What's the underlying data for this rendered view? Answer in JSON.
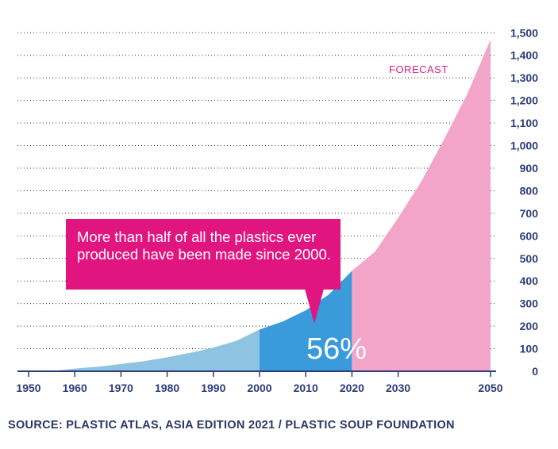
{
  "chart_data": {
    "type": "area",
    "x_ticks": [
      1950,
      1960,
      1970,
      1980,
      1990,
      2000,
      2010,
      2020,
      2030,
      2050
    ],
    "y_ticks": [
      0,
      100,
      200,
      300,
      400,
      500,
      600,
      700,
      800,
      900,
      1000,
      1100,
      1200,
      1300,
      1400,
      1500
    ],
    "y_tick_labels": [
      "0",
      "100",
      "200",
      "300",
      "400",
      "500",
      "600",
      "700",
      "800",
      "900",
      "1,000",
      "1,100",
      "1,200",
      "1,300",
      "1,400",
      "1,500"
    ],
    "x_tick_labels": [
      "1950",
      "1960",
      "1970",
      "1980",
      "1990",
      "2000",
      "2010",
      "2020",
      "2030",
      "2050"
    ],
    "xlim": [
      1950,
      2050
    ],
    "ylim": [
      0,
      1500
    ],
    "grid": true,
    "y_axis_side": "right",
    "series": [
      {
        "x": [
          1955,
          1960,
          1965,
          1970,
          1975,
          1980,
          1985,
          1990,
          1995,
          2000
        ],
        "y": [
          0,
          12,
          20,
          32,
          45,
          62,
          82,
          105,
          135,
          185
        ],
        "color": "#8ec3e2"
      },
      {
        "x": [
          2000,
          2005,
          2010,
          2015,
          2020
        ],
        "y": [
          185,
          220,
          270,
          340,
          445
        ],
        "color": "#3a9bdb"
      },
      {
        "x": [
          2020,
          2025,
          2030,
          2035,
          2040,
          2045,
          2050
        ],
        "y": [
          445,
          530,
          680,
          840,
          1030,
          1230,
          1470
        ],
        "color": "#f2a5c9"
      }
    ],
    "annotations": {
      "forecast": "FORECAST",
      "percent": "56%",
      "callout": "More than half of all the plastics ever produced have been made since 2000."
    }
  },
  "source": "SOURCE: PLASTIC ATLAS, ASIA EDITION 2021 / PLASTIC SOUP FOUNDATION"
}
